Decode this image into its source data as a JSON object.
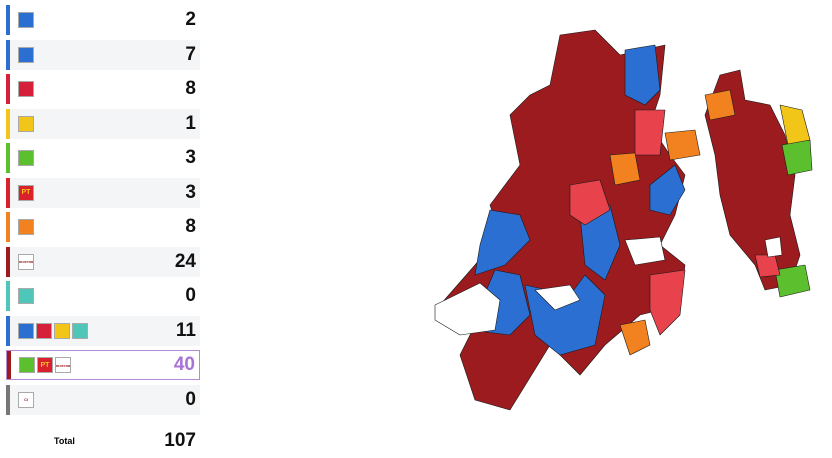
{
  "rows": [
    {
      "bar_color": "#2a6fd1",
      "logos": [
        {
          "bg": "#2a6fd1"
        }
      ],
      "count": 2
    },
    {
      "bar_color": "#2a6fd1",
      "logos": [
        {
          "bg": "#2a6fd1"
        }
      ],
      "count": 7
    },
    {
      "bar_color": "#d6203a",
      "logos": [
        {
          "bg": "#d6203a"
        }
      ],
      "count": 8
    },
    {
      "bar_color": "#f2c618",
      "logos": [
        {
          "bg": "#f2c618"
        }
      ],
      "count": 1
    },
    {
      "bar_color": "#5bbf2e",
      "logos": [
        {
          "bg": "#5bbf2e"
        }
      ],
      "count": 3
    },
    {
      "bar_color": "#d9202b",
      "logos": [
        {
          "bg": "#d9202b",
          "label": "PT"
        }
      ],
      "count": 3
    },
    {
      "bar_color": "#f28220",
      "logos": [
        {
          "bg": "#f28220"
        }
      ],
      "count": 8
    },
    {
      "bar_color": "#9b1b1f",
      "logos": [
        {
          "bg": "#ffffff",
          "label": "morena"
        }
      ],
      "count": 24
    },
    {
      "bar_color": "#4fc6b8",
      "logos": [
        {
          "bg": "#4fc6b8"
        }
      ],
      "count": 0
    },
    {
      "bar_color": "#2a6fd1",
      "logos": [
        {
          "bg": "#2a6fd1"
        },
        {
          "bg": "#d6203a"
        },
        {
          "bg": "#f2c618"
        },
        {
          "bg": "#4fc6b8"
        }
      ],
      "count": 11
    },
    {
      "bar_color": "#9b1b1f",
      "logos": [
        {
          "bg": "#5bbf2e"
        },
        {
          "bg": "#d9202b",
          "label": "PT"
        },
        {
          "bg": "#ffffff",
          "label": "morena"
        }
      ],
      "count": 40,
      "highlight": true
    },
    {
      "bar_color": "#777777",
      "logos": [
        {
          "bg": "#ffffff",
          "label": "CI"
        }
      ],
      "count": 0
    }
  ],
  "total": {
    "label": "Total",
    "value": 107
  }
}
